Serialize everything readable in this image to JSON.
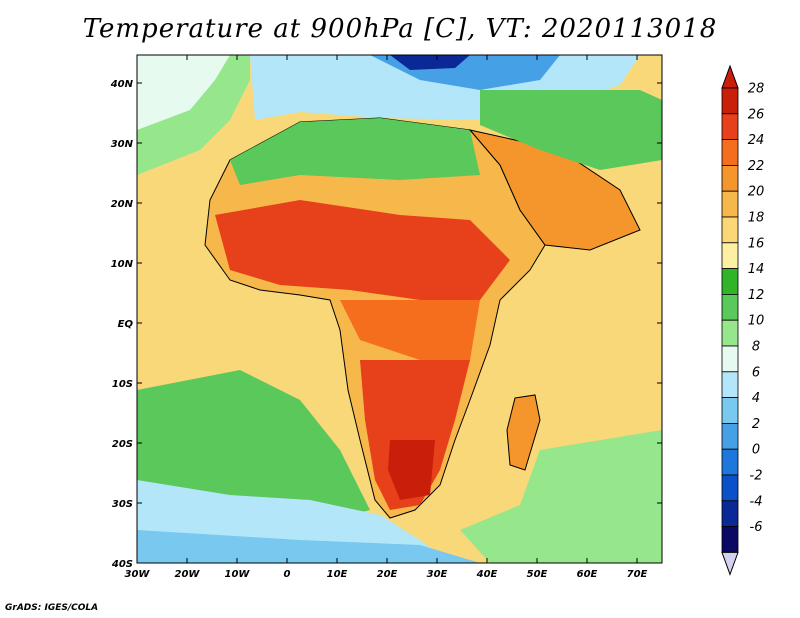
{
  "title": "Temperature at 900hPa [C], VT: 2020113018",
  "credit": "GrADS: IGES/COLA",
  "map": {
    "lon_range": [
      -30,
      75
    ],
    "lat_range": [
      -40,
      45
    ],
    "lon_ticks": [
      "30W",
      "20W",
      "10W",
      "0",
      "10E",
      "20E",
      "30E",
      "40E",
      "50E",
      "60E",
      "70E"
    ],
    "lat_ticks": [
      "40S",
      "30S",
      "20S",
      "10S",
      "EQ",
      "10N",
      "20N",
      "30N",
      "40N"
    ],
    "colors": {
      "ocean_base": "#f8d878",
      "land_base": "#f0a038",
      "coastline": "#000000"
    }
  },
  "colorbar": {
    "labels": [
      "28",
      "26",
      "24",
      "22",
      "20",
      "18",
      "16",
      "14",
      "12",
      "10",
      "8",
      "6",
      "4",
      "2",
      "0",
      "-2",
      "-4",
      "-6"
    ],
    "colors": [
      "#c81e0a",
      "#e6411a",
      "#f46e1e",
      "#f5962d",
      "#f7b84b",
      "#fbd778",
      "#fcf0a5",
      "#32b428",
      "#5ac85a",
      "#96e68c",
      "#e6faf0",
      "#b4e6fa",
      "#78c8f0",
      "#46a0e6",
      "#1e78dc",
      "#0a50c8",
      "#0a2896",
      "#0a0a64"
    ],
    "over_color": "#c81e0a",
    "under_color": "#d2d2f0"
  }
}
